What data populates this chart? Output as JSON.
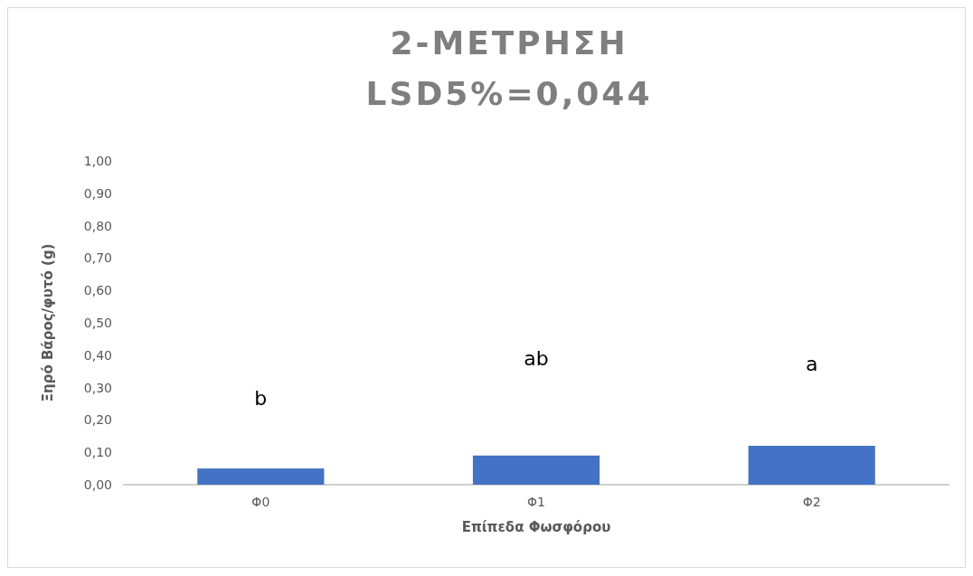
{
  "chart_data": {
    "type": "bar",
    "title": "2-ΜΕΤΡΗΣΗ\nLSD5%=0,044",
    "xlabel": "Επίπεδα Φωσφόρου",
    "ylabel": "Ξηρό Βάρος/φυτό (g)",
    "categories": [
      "Φ0",
      "Φ1",
      "Φ2"
    ],
    "values": [
      0.05,
      0.09,
      0.12
    ],
    "color": "#4472c4",
    "ylim": [
      0,
      1
    ],
    "yticks": [
      {
        "value": 0,
        "label": "0,00"
      },
      {
        "value": 0.1,
        "label": "0,10"
      },
      {
        "value": 0.2,
        "label": "0,20"
      },
      {
        "value": 0.3,
        "label": "0,30"
      },
      {
        "value": 0.4,
        "label": "0,40"
      },
      {
        "value": 0.5,
        "label": "0,50"
      },
      {
        "value": 0.6,
        "label": "0,60"
      },
      {
        "value": 0.7,
        "label": "0,70"
      },
      {
        "value": 0.8,
        "label": "0,80"
      },
      {
        "value": 0.9,
        "label": "0,90"
      },
      {
        "value": 1,
        "label": "1,00"
      }
    ],
    "annotations": [
      "b",
      "ab",
      "a"
    ]
  }
}
